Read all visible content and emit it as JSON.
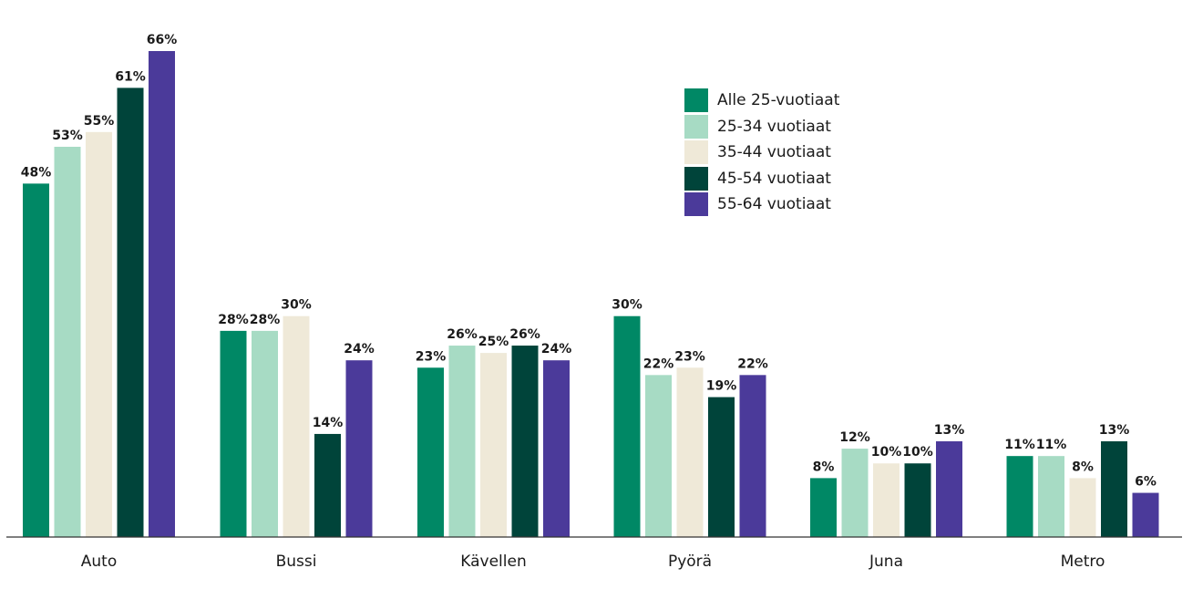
{
  "chart_data": {
    "type": "bar",
    "categories": [
      "Auto",
      "Bussi",
      "Kävellen",
      "Pyörä",
      "Juna",
      "Metro"
    ],
    "series": [
      {
        "name": "Alle 25-vuotiaat",
        "color": "#008865",
        "values": [
          48,
          28,
          23,
          30,
          8,
          11
        ]
      },
      {
        "name": "25-34 vuotiaat",
        "color": "#a7dbc4",
        "values": [
          53,
          28,
          26,
          22,
          12,
          11
        ]
      },
      {
        "name": "35-44 vuotiaat",
        "color": "#efe9d8",
        "values": [
          55,
          30,
          25,
          23,
          10,
          8
        ]
      },
      {
        "name": "45-54 vuotiaat",
        "color": "#00443a",
        "values": [
          61,
          14,
          26,
          19,
          10,
          13
        ]
      },
      {
        "name": "55-64 vuotiaat",
        "color": "#4b3a9a",
        "values": [
          66,
          24,
          24,
          22,
          13,
          6
        ]
      }
    ],
    "value_suffix": "%",
    "ylim": [
      0,
      66
    ],
    "grid": false,
    "legend_position": "top-right"
  }
}
